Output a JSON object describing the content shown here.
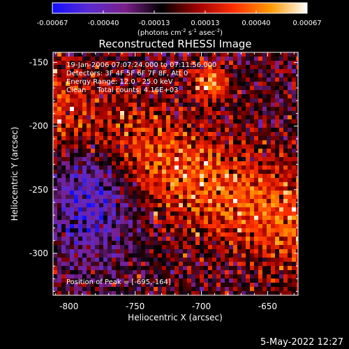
{
  "colorbar": {
    "ticks": [
      "-0.00067",
      "-0.00040",
      "-0.00013",
      "0.00013",
      "0.00040",
      "0.00067"
    ],
    "units": "(photons cm",
    "units_sup1": "-2",
    "units_mid": " s",
    "units_sup2": "-1",
    "units_mid2": " asec",
    "units_sup3": "-2",
    "units_end": ")",
    "colors": [
      "#1010ff",
      "#5a2bd0",
      "#7a1f8a",
      "#000000",
      "#a00000",
      "#ff3000",
      "#ff9a00",
      "#ffffff"
    ]
  },
  "chart_data": {
    "type": "heatmap",
    "title": "Reconstructed RHESSI Image",
    "xlabel": "Heliocentric X (arcsec)",
    "ylabel": "Heliocentric Y (arcsec)",
    "xlim": [
      -812,
      -627
    ],
    "ylim": [
      -333,
      -142
    ],
    "xticks": [
      "-800",
      "-750",
      "-700",
      "-650"
    ],
    "xtick_values": [
      -800,
      -750,
      -700,
      -650
    ],
    "yticks": [
      "-150",
      "-200",
      "-250",
      "-300"
    ],
    "ytick_values": [
      -150,
      -200,
      -250,
      -300
    ],
    "color_range": [
      -0.00067,
      0.00067
    ],
    "peak": [
      -695,
      -164
    ]
  },
  "annotations": {
    "line1": "19-Jan-2006 07:07:24.000 to 07:11:56.000",
    "line2": "Detectors: 3F 4F 5F 6F 7F 8F, Att 0",
    "line3": "Energy Range: 12.0 - 25.0 keV",
    "line4": "Clean     Total counts: 4.16E+03",
    "peak_label": "Position of Peak = [-695,-164]"
  },
  "footer": {
    "date": "5-May-2022 12:27"
  }
}
